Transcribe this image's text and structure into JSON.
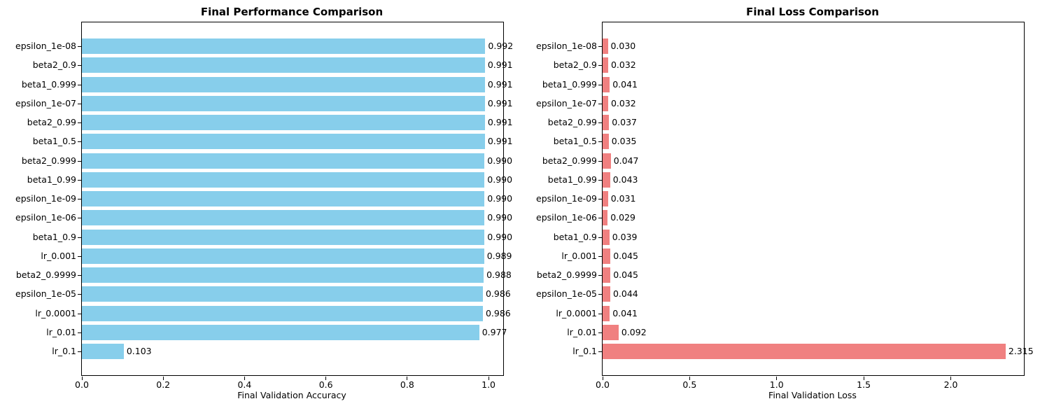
{
  "figure": {
    "background": "#ffffff",
    "text_color": "#000000"
  },
  "chart_data": [
    {
      "type": "bar",
      "orientation": "horizontal",
      "title": "Final Performance Comparison",
      "xlabel": "Final Validation Accuracy",
      "bar_color": "#87CEEB",
      "xlim": [
        0,
        1.036
      ],
      "xticks": [
        0.0,
        0.2,
        0.4,
        0.6,
        0.8,
        1.0
      ],
      "xtick_labels": [
        "0.0",
        "0.2",
        "0.4",
        "0.6",
        "0.8",
        "1.0"
      ],
      "grid": false,
      "legend": null,
      "categories": [
        "epsilon_1e-08",
        "beta2_0.9",
        "beta1_0.999",
        "epsilon_1e-07",
        "beta2_0.99",
        "beta1_0.5",
        "beta2_0.999",
        "beta1_0.99",
        "epsilon_1e-09",
        "epsilon_1e-06",
        "beta1_0.9",
        "lr_0.001",
        "beta2_0.9999",
        "epsilon_1e-05",
        "lr_0.0001",
        "lr_0.01",
        "lr_0.1"
      ],
      "values": [
        0.992,
        0.991,
        0.991,
        0.991,
        0.991,
        0.991,
        0.99,
        0.99,
        0.99,
        0.99,
        0.99,
        0.989,
        0.988,
        0.986,
        0.986,
        0.977,
        0.103
      ],
      "value_labels": [
        "0.992",
        "0.991",
        "0.991",
        "0.991",
        "0.991",
        "0.991",
        "0.990",
        "0.990",
        "0.990",
        "0.990",
        "0.990",
        "0.989",
        "0.988",
        "0.986",
        "0.986",
        "0.977",
        "0.103"
      ]
    },
    {
      "type": "bar",
      "orientation": "horizontal",
      "title": "Final Loss Comparison",
      "xlabel": "Final Validation Loss",
      "bar_color": "#F08080",
      "xlim": [
        0,
        2.42
      ],
      "xticks": [
        0.0,
        0.5,
        1.0,
        1.5,
        2.0
      ],
      "xtick_labels": [
        "0.0",
        "0.5",
        "1.0",
        "1.5",
        "2.0"
      ],
      "grid": false,
      "legend": null,
      "categories": [
        "epsilon_1e-08",
        "beta2_0.9",
        "beta1_0.999",
        "epsilon_1e-07",
        "beta2_0.99",
        "beta1_0.5",
        "beta2_0.999",
        "beta1_0.99",
        "epsilon_1e-09",
        "epsilon_1e-06",
        "beta1_0.9",
        "lr_0.001",
        "beta2_0.9999",
        "epsilon_1e-05",
        "lr_0.0001",
        "lr_0.01",
        "lr_0.1"
      ],
      "values": [
        0.03,
        0.032,
        0.041,
        0.032,
        0.037,
        0.035,
        0.047,
        0.043,
        0.031,
        0.029,
        0.039,
        0.045,
        0.045,
        0.044,
        0.041,
        0.092,
        2.315
      ],
      "value_labels": [
        "0.030",
        "0.032",
        "0.041",
        "0.032",
        "0.037",
        "0.035",
        "0.047",
        "0.043",
        "0.031",
        "0.029",
        "0.039",
        "0.045",
        "0.045",
        "0.044",
        "0.041",
        "0.092",
        "2.315"
      ]
    }
  ]
}
